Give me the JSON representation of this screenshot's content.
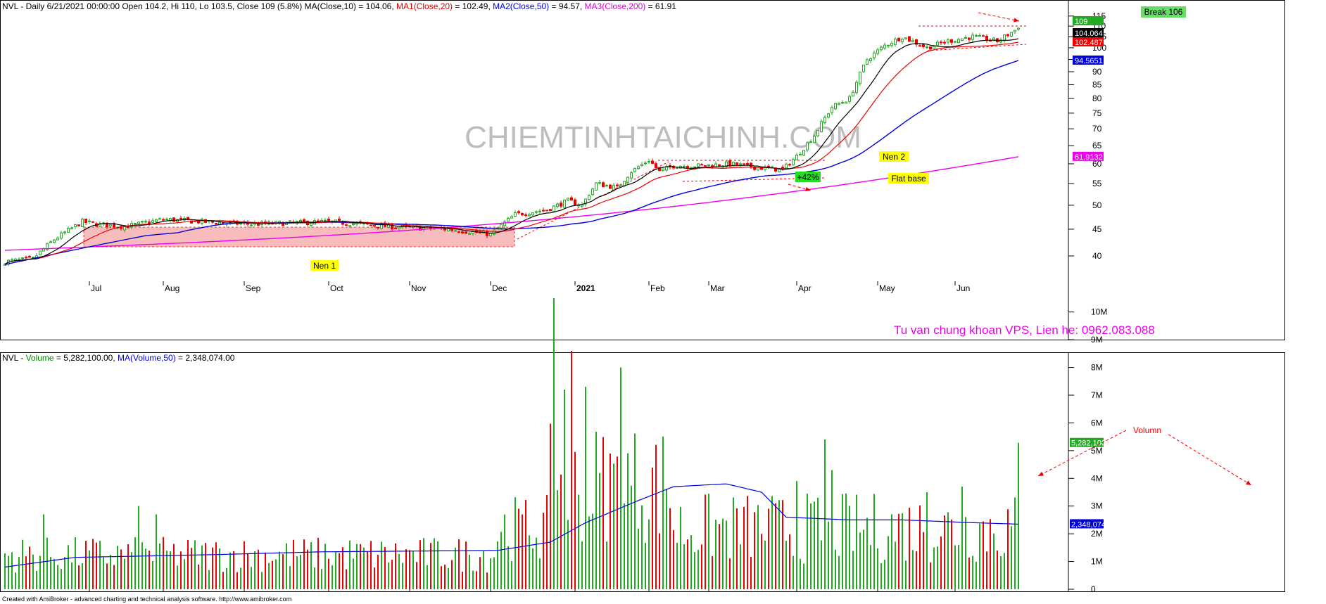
{
  "header": {
    "price": [
      {
        "text": "NVL - Daily 6/21/2021 00:00:00 Open 104.2, Hi 110, Lo 103.5, Close 109 (5.8%) MA(Close,10) = 104.06,",
        "color": "#000000"
      },
      {
        "text": " MA1(Close,20)",
        "color": "#e00000"
      },
      {
        "text": " = 102.49,",
        "color": "#000000"
      },
      {
        "text": " MA2(Close,50)",
        "color": "#0000dd"
      },
      {
        "text": " = 94.57,",
        "color": "#000000"
      },
      {
        "text": " MA3(Close,200)",
        "color": "#dd00dd"
      },
      {
        "text": " = 61.91",
        "color": "#000000"
      }
    ],
    "volume": [
      {
        "text": "NVL -",
        "color": "#000000"
      },
      {
        "text": " Volume",
        "color": "#008800"
      },
      {
        "text": " = 5,282,100.00,",
        "color": "#000000"
      },
      {
        "text": " MA(Volume,50)",
        "color": "#0000dd"
      },
      {
        "text": " = 2,348,074.00",
        "color": "#000000"
      }
    ]
  },
  "watermark": "CHIEMTINHTAICHINH.COM",
  "advert": "Tu van chung khoan VPS, Lien he: 0962.083.088",
  "footer": "Created with AmiBroker - advanced charting and technical analysis software. http://www.amibroker.com",
  "colors": {
    "up": "#22aa22",
    "down": "#ee0000",
    "ma10": "#000000",
    "ma20": "#ee0000",
    "ma50": "#0000dd",
    "ma200": "#ee00ee",
    "volma": "#0000dd",
    "base": "#f6a6a6"
  },
  "annotations": {
    "nen1": "Nen 1",
    "nen2": "Nen 2",
    "flat_base": "Flat base",
    "gain": "+42%",
    "break": "Break 106",
    "volumn": "Volumn"
  },
  "chart_data": [
    {
      "type": "candlestick",
      "title": "NVL - Daily",
      "scale": "log",
      "ylim": [
        36,
        116
      ],
      "y_ticks": [
        40,
        45,
        50,
        55,
        60,
        65,
        70,
        75,
        80,
        85,
        90,
        95,
        100,
        105,
        110,
        115
      ],
      "x_ticks": [
        "Jul",
        "Aug",
        "Sep",
        "Oct",
        "Nov",
        "Dec",
        "2021",
        "Feb",
        "Mar",
        "Apr",
        "May",
        "Jun"
      ],
      "x_tick_index": [
        24,
        45,
        68,
        92,
        115,
        138,
        162,
        183,
        200,
        225,
        248,
        270
      ],
      "ohlc_anchors": [
        [
          0,
          39
        ],
        [
          8,
          39.5
        ],
        [
          14,
          43
        ],
        [
          22,
          46.5
        ],
        [
          26,
          46
        ],
        [
          34,
          45.5
        ],
        [
          45,
          47
        ],
        [
          56,
          46.5
        ],
        [
          70,
          46
        ],
        [
          92,
          46.5
        ],
        [
          110,
          45.5
        ],
        [
          126,
          45
        ],
        [
          138,
          44
        ],
        [
          145,
          48
        ],
        [
          154,
          49
        ],
        [
          160,
          51
        ],
        [
          164,
          50
        ],
        [
          168,
          55
        ],
        [
          174,
          54
        ],
        [
          178,
          58
        ],
        [
          183,
          61
        ],
        [
          186,
          58
        ],
        [
          190,
          59.5
        ],
        [
          198,
          59.5
        ],
        [
          206,
          60
        ],
        [
          214,
          59
        ],
        [
          221,
          58.5
        ],
        [
          225,
          62
        ],
        [
          230,
          68
        ],
        [
          235,
          77
        ],
        [
          240,
          80
        ],
        [
          245,
          95
        ],
        [
          250,
          101
        ],
        [
          255,
          105
        ],
        [
          262,
          100
        ],
        [
          268,
          103
        ],
        [
          275,
          105
        ],
        [
          282,
          103
        ],
        [
          288,
          109
        ]
      ],
      "ma_last": {
        "ma10": 104.06,
        "ma20": 102.49,
        "ma50": 94.57,
        "ma200": 61.91
      },
      "ma200_start": 41,
      "ma50_start": 38.5,
      "last_close": 109,
      "price_labels": [
        {
          "text": "109",
          "value": 109,
          "bg": "#22aa22",
          "fg": "#ffffff"
        },
        {
          "text": "104.064",
          "value": 104.064,
          "bg": "#000000",
          "fg": "#ffffff"
        },
        {
          "text": "102.487",
          "value": 102.487,
          "bg": "#ee0000",
          "fg": "#ffffff"
        },
        {
          "text": "94.5651",
          "value": 94.5651,
          "bg": "#0000dd",
          "fg": "#ffffff"
        },
        {
          "text": "61.9132",
          "value": 61.9132,
          "bg": "#ee00ee",
          "fg": "#ffffff"
        }
      ],
      "bars": 289
    },
    {
      "type": "bar",
      "title": "NVL - Volume",
      "ylim": [
        0,
        10500000
      ],
      "y_ticks": [
        0,
        1000000,
        2000000,
        3000000,
        4000000,
        5000000,
        6000000,
        7000000,
        8000000,
        9000000,
        10000000
      ],
      "y_tick_labels": [
        "0",
        "1M",
        "2M",
        "3M",
        "4M",
        "5M",
        "6M",
        "7M",
        "8M",
        "9M",
        "10M"
      ],
      "last_volume": 5282100,
      "last_ma50": 2348074,
      "value_labels": [
        {
          "text": "5,282,100",
          "value": 5282100,
          "bg": "#22aa22",
          "fg": "#ffffff"
        },
        {
          "text": "2,348,074",
          "value": 2348074,
          "bg": "#0000dd",
          "fg": "#ffffff"
        }
      ],
      "volma_anchors": [
        [
          0,
          800000
        ],
        [
          20,
          1150000
        ],
        [
          60,
          1250000
        ],
        [
          90,
          1350000
        ],
        [
          140,
          1400000
        ],
        [
          155,
          1700000
        ],
        [
          165,
          2400000
        ],
        [
          180,
          3200000
        ],
        [
          190,
          3700000
        ],
        [
          205,
          3800000
        ],
        [
          215,
          3500000
        ],
        [
          222,
          2600000
        ],
        [
          240,
          2500000
        ],
        [
          255,
          2500000
        ],
        [
          275,
          2400000
        ],
        [
          288,
          2348074
        ]
      ],
      "spikes": [
        [
          11,
          2700000
        ],
        [
          38,
          3000000
        ],
        [
          43,
          2700000
        ],
        [
          156,
          10500000
        ],
        [
          159,
          7200000
        ],
        [
          161,
          8600000
        ],
        [
          165,
          7300000
        ],
        [
          175,
          8000000
        ],
        [
          225,
          3900000
        ],
        [
          233,
          5400000
        ],
        [
          235,
          4300000
        ],
        [
          262,
          3500000
        ],
        [
          272,
          3700000
        ],
        [
          288,
          5282100
        ]
      ]
    }
  ]
}
